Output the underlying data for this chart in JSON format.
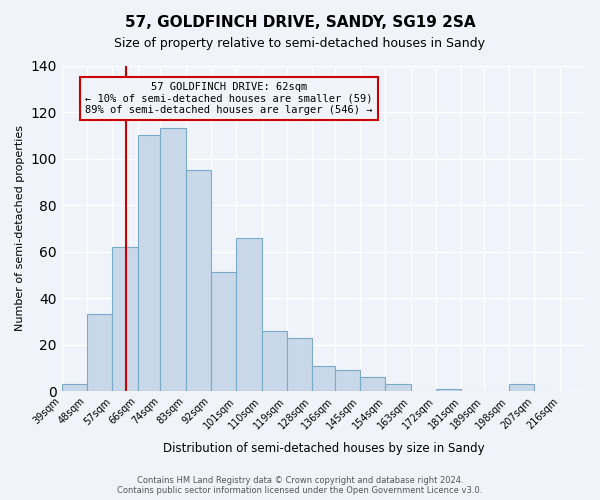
{
  "title": "57, GOLDFINCH DRIVE, SANDY, SG19 2SA",
  "subtitle": "Size of property relative to semi-detached houses in Sandy",
  "xlabel": "Distribution of semi-detached houses by size in Sandy",
  "ylabel": "Number of semi-detached properties",
  "bin_labels": [
    "39sqm",
    "48sqm",
    "57sqm",
    "66sqm",
    "74sqm",
    "83sqm",
    "92sqm",
    "101sqm",
    "110sqm",
    "119sqm",
    "128sqm",
    "136sqm",
    "145sqm",
    "154sqm",
    "163sqm",
    "172sqm",
    "181sqm",
    "189sqm",
    "198sqm",
    "207sqm",
    "216sqm"
  ],
  "bin_edges": [
    39,
    48,
    57,
    66,
    74,
    83,
    92,
    101,
    110,
    119,
    128,
    136,
    145,
    154,
    163,
    172,
    181,
    189,
    198,
    207,
    216
  ],
  "counts": [
    3,
    33,
    62,
    110,
    113,
    95,
    51,
    66,
    26,
    23,
    11,
    9,
    6,
    3,
    0,
    1,
    0,
    0,
    3,
    0
  ],
  "bar_color": "#c8d8e8",
  "bar_edge_color": "#7aaac8",
  "vline_x": 62,
  "vline_color": "#cc0000",
  "annotation_title": "57 GOLDFINCH DRIVE: 62sqm",
  "annotation_line1": "← 10% of semi-detached houses are smaller (59)",
  "annotation_line2": "89% of semi-detached houses are larger (546) →",
  "annotation_box_color": "#cc0000",
  "ylim": [
    0,
    140
  ],
  "yticks": [
    0,
    20,
    40,
    60,
    80,
    100,
    120,
    140
  ],
  "footer1": "Contains HM Land Registry data © Crown copyright and database right 2024.",
  "footer2": "Contains public sector information licensed under the Open Government Licence v3.0.",
  "background_color": "#f0f4fa",
  "grid_color": "#ffffff"
}
